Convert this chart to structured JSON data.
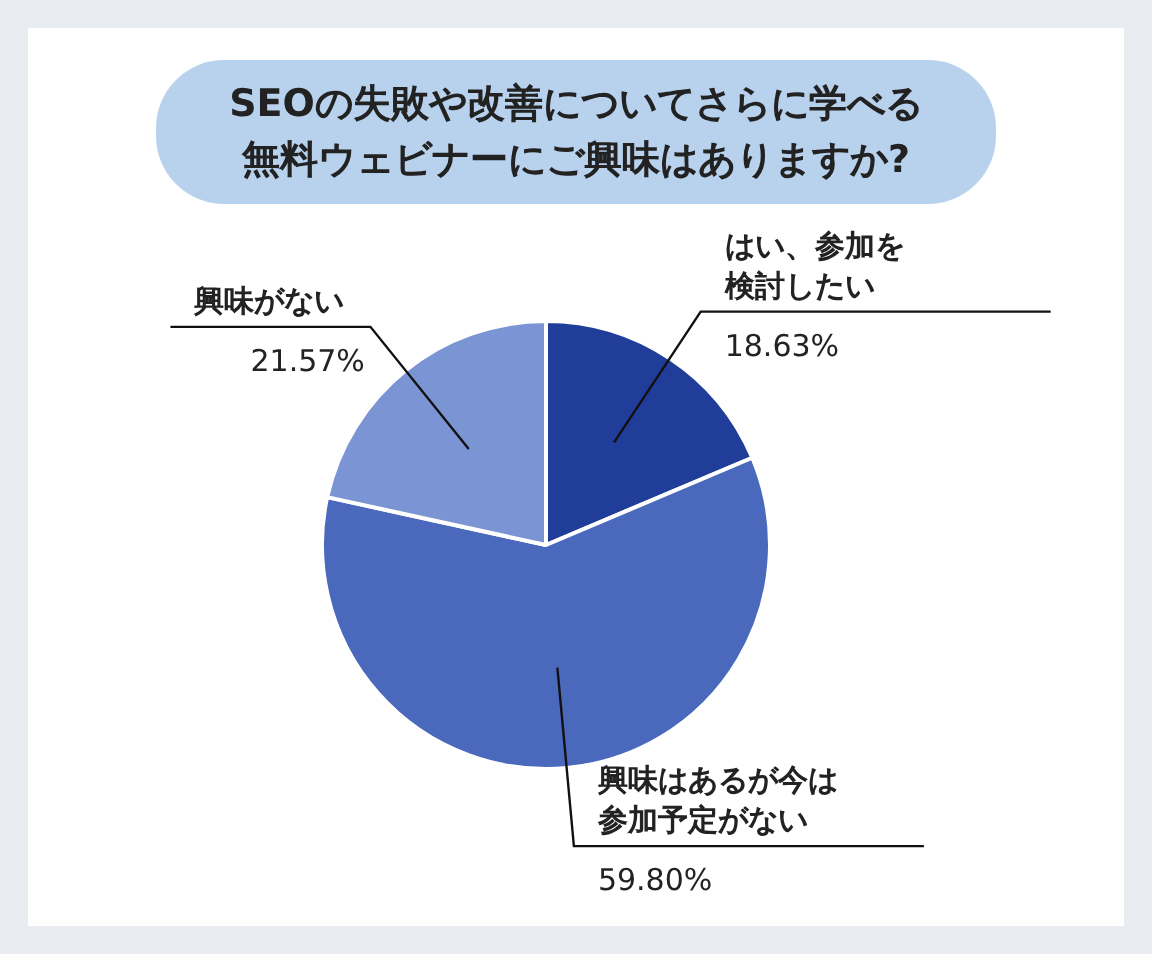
{
  "chart_data": {
    "type": "pie",
    "title": "SEOの失敗や改善についてさらに学べる無料ウェビナーにご興味はありますか?",
    "categories": [
      "はい、参加を検討したい",
      "興味はあるが今は参加予定がない",
      "興味がない"
    ],
    "values": [
      18.63,
      59.8,
      21.57
    ],
    "colors": [
      "#1f3d99",
      "#4a69bd",
      "#7b94d3"
    ],
    "value_labels": [
      "18.63%",
      "59.80%",
      "21.57%"
    ],
    "legend": false
  }
}
